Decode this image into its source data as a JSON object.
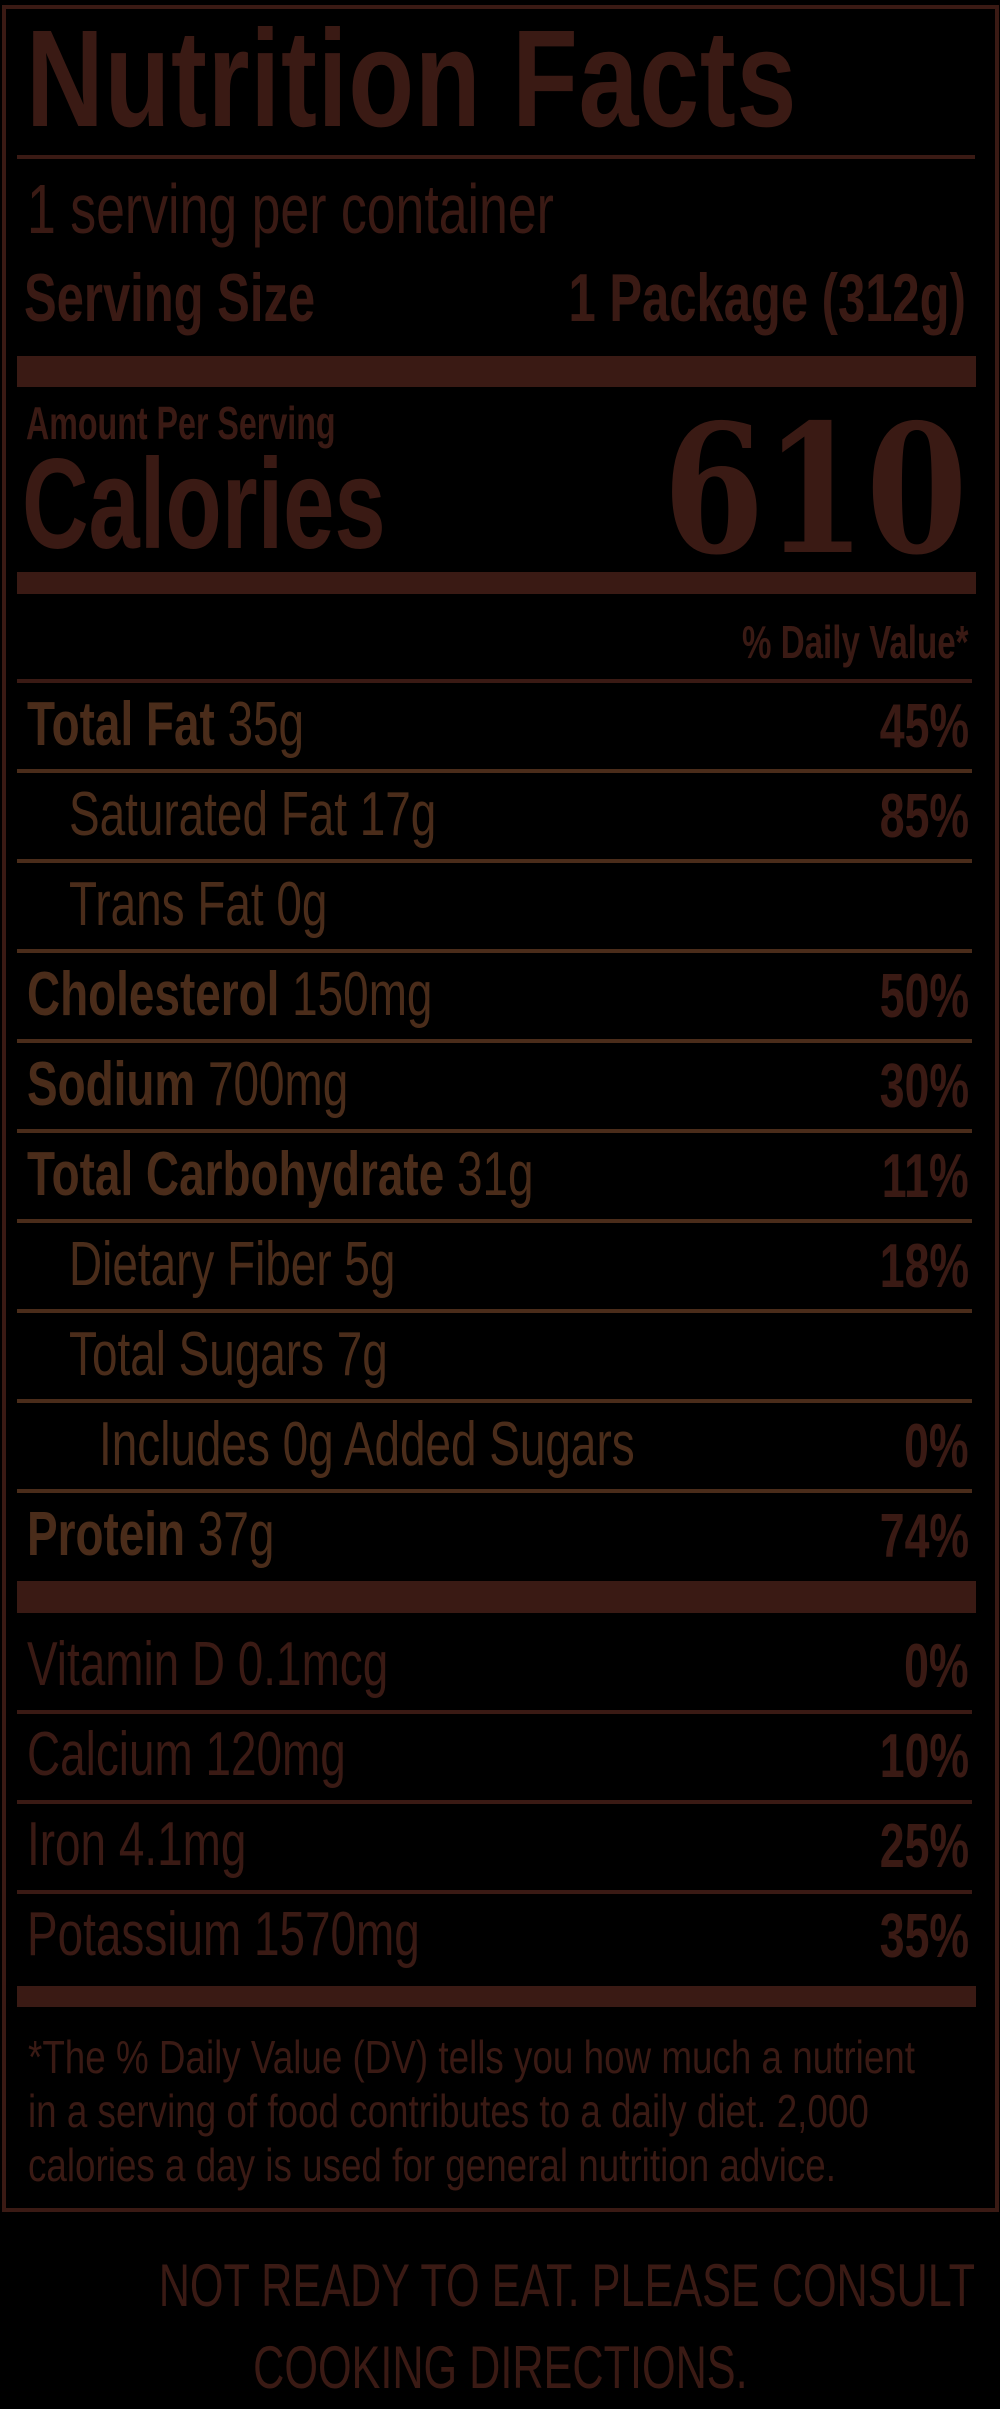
{
  "label": {
    "title": "Nutrition Facts",
    "servings_per_container": "1 serving per container",
    "serving_size_label": "Serving Size",
    "serving_size_value": "1 Package (312g)",
    "amount_per_serving": "Amount Per Serving",
    "calories_label": "Calories",
    "calories_value": "610",
    "daily_value_header": "% Daily Value*",
    "nutrients": [
      {
        "name": "Total Fat",
        "amount": "35g",
        "dv": "45%",
        "bold": true,
        "indent": 0
      },
      {
        "name": "Saturated Fat",
        "amount": "17g",
        "dv": "85%",
        "bold": false,
        "indent": 1
      },
      {
        "name": "Trans Fat",
        "amount": "0g",
        "dv": "",
        "bold": false,
        "indent": 1
      },
      {
        "name": "Cholesterol",
        "amount": "150mg",
        "dv": "50%",
        "bold": true,
        "indent": 0
      },
      {
        "name": "Sodium",
        "amount": "700mg",
        "dv": "30%",
        "bold": true,
        "indent": 0
      },
      {
        "name": "Total Carbohydrate",
        "amount": "31g",
        "dv": "11%",
        "bold": true,
        "indent": 0
      },
      {
        "name": "Dietary Fiber",
        "amount": "5g",
        "dv": "18%",
        "bold": false,
        "indent": 1
      },
      {
        "name": "Total Sugars",
        "amount": "7g",
        "dv": "",
        "bold": false,
        "indent": 1
      },
      {
        "name": "Includes 0g Added Sugars",
        "amount": "",
        "dv": "0%",
        "bold": false,
        "indent": 2
      },
      {
        "name": "Protein",
        "amount": "37g",
        "dv": "74%",
        "bold": true,
        "indent": 0
      }
    ],
    "vitamins": [
      {
        "name": "Vitamin D",
        "amount": "0.1mcg",
        "dv": "0%"
      },
      {
        "name": "Calcium",
        "amount": "120mg",
        "dv": "10%"
      },
      {
        "name": "Iron",
        "amount": "4.1mg",
        "dv": "25%"
      },
      {
        "name": "Potassium",
        "amount": "1570mg",
        "dv": "35%"
      }
    ],
    "footnote_lines": [
      "*The % Daily Value (DV) tells you how much a nutrient",
      "in a serving of food contributes to a daily diet. 2,000",
      "calories a day is used for general nutrition advice."
    ]
  },
  "bottom_note_lines": [
    "NOT READY TO EAT. PLEASE CONSULT",
    "COOKING DIRECTIONS."
  ],
  "colors": {
    "background": "#000000",
    "primary": "#3a1a14",
    "secondary": "#4a2c1a"
  }
}
